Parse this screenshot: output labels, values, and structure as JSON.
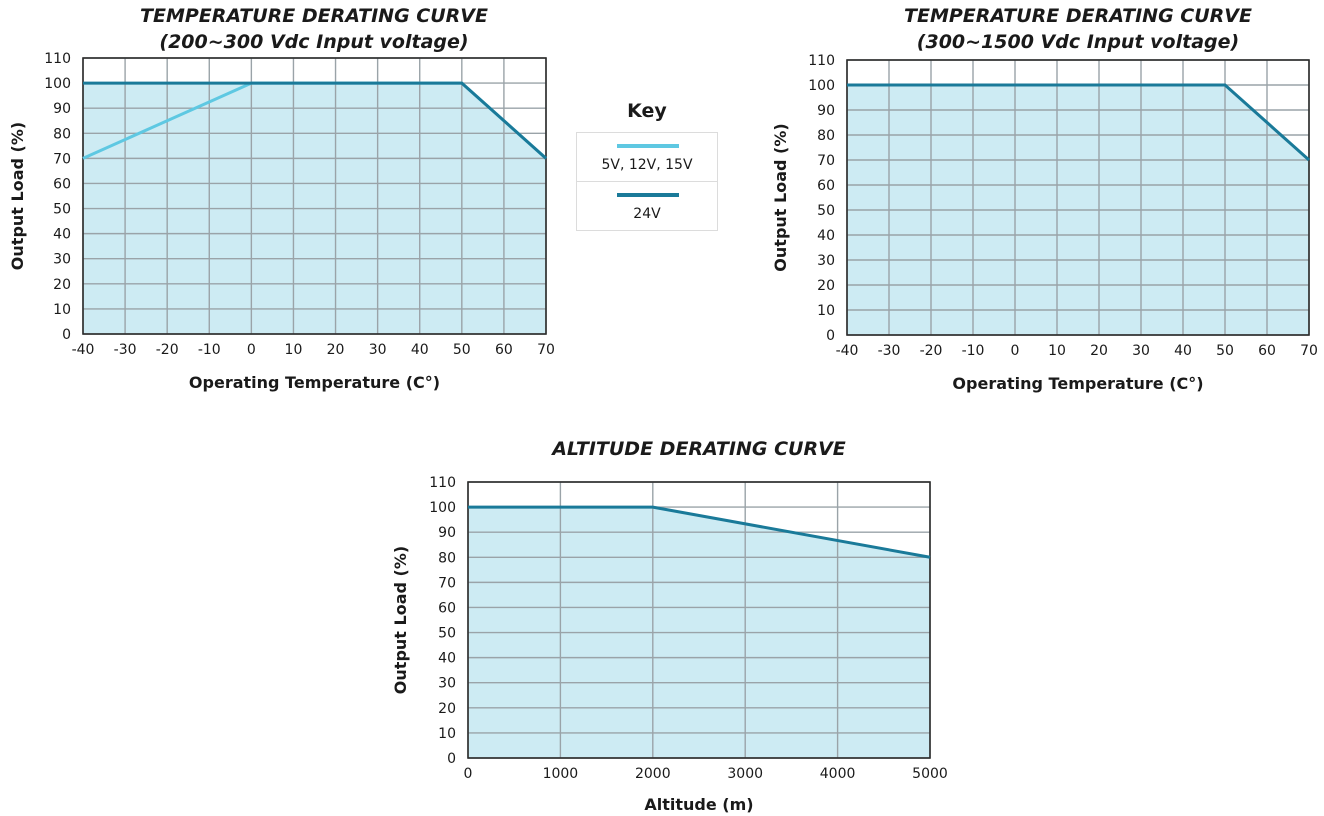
{
  "colors": {
    "fill": "#cdebf3",
    "series_light": "#5ec8e2",
    "series_dark": "#1a7a99"
  },
  "key": {
    "title": "Key",
    "items": [
      {
        "label": "5V, 12V, 15V",
        "color": "#5ec8e2"
      },
      {
        "label": "24V",
        "color": "#1a7a99"
      }
    ]
  },
  "chart_data": [
    {
      "type": "line",
      "title": "TEMPERATURE DERATING CURVE",
      "subtitle": "(200~300 Vdc Input voltage)",
      "xlabel": "Operating Temperature (C°)",
      "ylabel": "Output Load (%)",
      "xlim": [
        -40,
        70
      ],
      "ylim": [
        0,
        110
      ],
      "xticks": [
        -40,
        -30,
        -20,
        -10,
        0,
        10,
        20,
        30,
        40,
        50,
        60,
        70
      ],
      "yticks": [
        0,
        10,
        20,
        30,
        40,
        50,
        60,
        70,
        80,
        90,
        100,
        110
      ],
      "grid": true,
      "filled_area": true,
      "series": [
        {
          "name": "5V, 12V, 15V",
          "color": "#5ec8e2",
          "x": [
            -40,
            0,
            50,
            70
          ],
          "y": [
            70,
            100,
            100,
            70
          ]
        },
        {
          "name": "24V",
          "color": "#1a7a99",
          "x": [
            -40,
            50,
            70
          ],
          "y": [
            100,
            100,
            70
          ]
        }
      ]
    },
    {
      "type": "line",
      "title": "TEMPERATURE DERATING CURVE",
      "subtitle": "(300~1500 Vdc Input voltage)",
      "xlabel": "Operating Temperature (C°)",
      "ylabel": "Output Load (%)",
      "xlim": [
        -40,
        70
      ],
      "ylim": [
        0,
        110
      ],
      "xticks": [
        -40,
        -30,
        -20,
        -10,
        0,
        10,
        20,
        30,
        40,
        50,
        60,
        70
      ],
      "yticks": [
        0,
        10,
        20,
        30,
        40,
        50,
        60,
        70,
        80,
        90,
        100,
        110
      ],
      "grid": true,
      "filled_area": true,
      "series": [
        {
          "name": "24V",
          "color": "#1a7a99",
          "x": [
            -40,
            50,
            70
          ],
          "y": [
            100,
            100,
            70
          ]
        }
      ]
    },
    {
      "type": "line",
      "title": "ALTITUDE DERATING CURVE",
      "subtitle": "",
      "xlabel": "Altitude (m)",
      "ylabel": "Output Load (%)",
      "xlim": [
        0,
        5000
      ],
      "ylim": [
        0,
        110
      ],
      "xticks": [
        0,
        1000,
        2000,
        3000,
        4000,
        5000
      ],
      "yticks": [
        0,
        10,
        20,
        30,
        40,
        50,
        60,
        70,
        80,
        90,
        100,
        110
      ],
      "grid": true,
      "filled_area": true,
      "series": [
        {
          "name": "24V",
          "color": "#1a7a99",
          "x": [
            0,
            2000,
            5000
          ],
          "y": [
            100,
            100,
            80
          ]
        }
      ]
    }
  ]
}
